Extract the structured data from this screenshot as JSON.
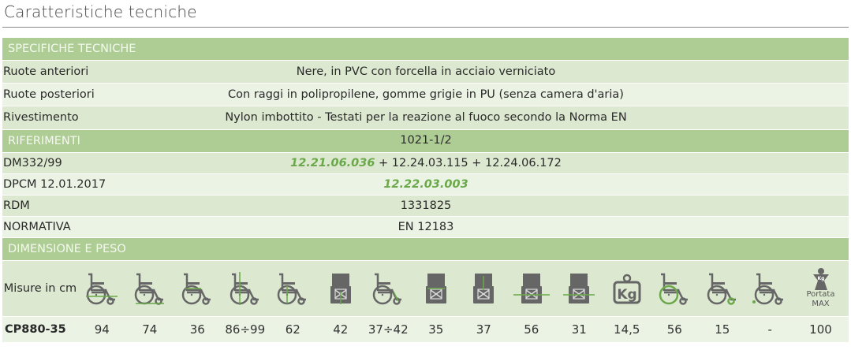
{
  "title": "Caratteristiche tecniche",
  "colors": {
    "header": "#aecd94",
    "row_dark": "#dce8d0",
    "row_light": "#ebf3e4",
    "accent": "#6aa84a",
    "icon": "#666666"
  },
  "sections": {
    "specifiche": {
      "label": "SPECIFICHE TECNICHE",
      "rows": [
        {
          "key": "Ruote anteriori",
          "value": "Nere, in PVC con forcella in acciaio verniciato"
        },
        {
          "key": "Ruote posteriori",
          "value": "Con raggi in polipropilene, gomme grigie in PU (senza camera d'aria)"
        },
        {
          "key": "Rivestimento",
          "value": "Nylon imbottito - Testati per la reazione al fuoco secondo la Norma EN 1021-1/2"
        }
      ]
    },
    "riferimenti": {
      "label": "RIFERIMENTI",
      "rows": [
        {
          "key": "DM332/99",
          "highlight": "12.21.06.036",
          "rest": " + 12.24.03.115 + 12.24.06.172"
        },
        {
          "key": "DPCM 12.01.2017",
          "highlight": "12.22.03.003"
        },
        {
          "key": "RDM",
          "value": "1331825"
        },
        {
          "key": "NORMATIVA",
          "value": "EN 12183"
        }
      ]
    },
    "dimensioni": {
      "label": "DIMENSIONE E PESO",
      "unit_label": "Misure in cm",
      "portata_label": "Portata",
      "max_label": "MAX",
      "icons": [
        "wheelchair-length-icon",
        "wheelchair-folded-length-icon",
        "wheelchair-seat-depth-icon",
        "wheelchair-height-icon",
        "wheelchair-folded-height-icon",
        "seat-front-height-icon",
        "footrest-length-icon",
        "seat-width-icon",
        "backrest-height-icon",
        "total-width-icon",
        "folded-width-icon",
        "weight-kg-icon",
        "rear-wheel-diameter-icon",
        "front-wheel-diameter-icon",
        "anti-tip-icon",
        "max-load-icon"
      ],
      "model": "CP880-35",
      "values": [
        "94",
        "74",
        "36",
        "86÷99",
        "62",
        "42",
        "37÷42",
        "35",
        "37",
        "56",
        "31",
        "14,5",
        "56",
        "15",
        "-",
        "100"
      ]
    }
  }
}
